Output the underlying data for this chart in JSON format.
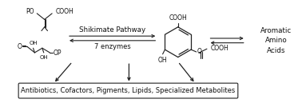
{
  "bg_color": "#ffffff",
  "pathway_label": "Shikimate Pathway",
  "enzymes_label": "7 enzymes",
  "aromatic_label": "Aromatic\nAmino\nAcids",
  "bottom_box_text": "Antibiotics, Cofactors, Pigments, Lipids, Specialized Metabolites",
  "line_color": "#222222",
  "text_color": "#111111",
  "font_size_main": 6.5,
  "font_size_small": 5.5,
  "font_size_box": 6.0
}
